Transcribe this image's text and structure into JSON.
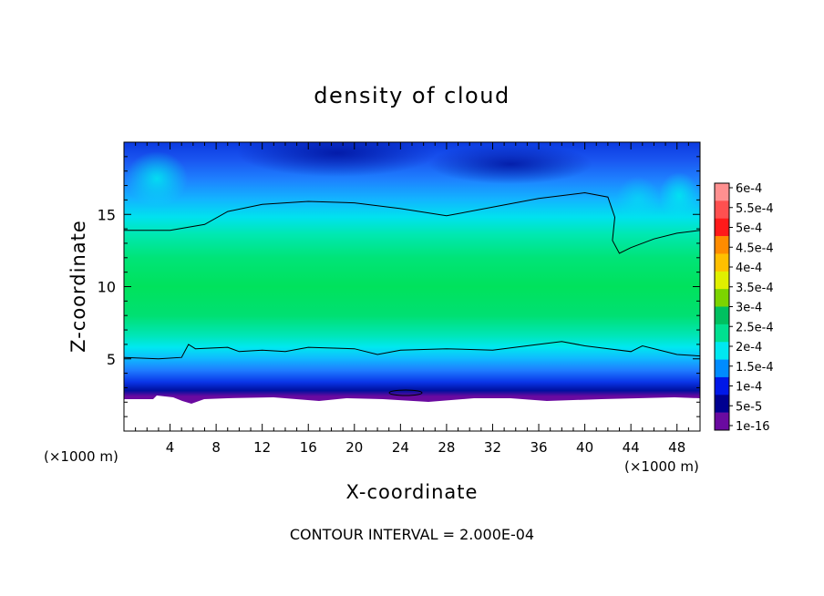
{
  "chart_data": {
    "type": "heatmap",
    "title": "density of cloud",
    "xlabel": "X-coordinate",
    "ylabel": "Z-coordinate",
    "x_unit_left": "(×1000 m)",
    "x_unit_right": "(×1000 m)",
    "xlim": [
      0,
      50
    ],
    "ylim": [
      0,
      20
    ],
    "x_ticks": [
      4,
      8,
      12,
      16,
      20,
      24,
      28,
      32,
      36,
      40,
      44,
      48
    ],
    "y_ticks": [
      5,
      10,
      15
    ],
    "footer": "CONTOUR INTERVAL = 2.000E-04",
    "colorbar": {
      "labels": [
        "6e-4",
        "5.5e-4",
        "5e-4",
        "4.5e-4",
        "4e-4",
        "3.5e-4",
        "3e-4",
        "2.5e-4",
        "2e-4",
        "1.5e-4",
        "1e-4",
        "5e-5",
        "1e-16"
      ],
      "colors": [
        "#ff9090",
        "#ff5050",
        "#ff1a1a",
        "#ff8c00",
        "#ffc000",
        "#e0f000",
        "#7cd400",
        "#00c060",
        "#00e090",
        "#00e8f0",
        "#008cff",
        "#0018e8",
        "#000090",
        "#6a0aa0"
      ]
    },
    "contour_value": "2.000E-04",
    "upper_contour": [
      [
        0,
        13.9
      ],
      [
        4,
        13.9
      ],
      [
        7,
        14.3
      ],
      [
        9,
        15.2
      ],
      [
        12,
        15.7
      ],
      [
        16,
        15.9
      ],
      [
        20,
        15.8
      ],
      [
        24,
        15.4
      ],
      [
        28,
        14.9
      ],
      [
        32,
        15.5
      ],
      [
        36,
        16.1
      ],
      [
        40,
        16.5
      ],
      [
        42,
        16.2
      ],
      [
        42.6,
        14.8
      ],
      [
        42.4,
        13.2
      ],
      [
        43.0,
        12.3
      ],
      [
        44,
        12.7
      ],
      [
        46,
        13.3
      ],
      [
        48,
        13.7
      ],
      [
        50,
        13.9
      ]
    ],
    "lower_contour": [
      [
        0,
        5.1
      ],
      [
        3,
        5.0
      ],
      [
        5,
        5.1
      ],
      [
        5.6,
        6.0
      ],
      [
        6.2,
        5.7
      ],
      [
        9,
        5.8
      ],
      [
        10,
        5.5
      ],
      [
        12,
        5.6
      ],
      [
        14,
        5.5
      ],
      [
        16,
        5.8
      ],
      [
        20,
        5.7
      ],
      [
        22,
        5.3
      ],
      [
        24,
        5.6
      ],
      [
        28,
        5.7
      ],
      [
        32,
        5.6
      ],
      [
        36,
        6.0
      ],
      [
        38,
        6.2
      ],
      [
        40,
        5.9
      ],
      [
        44,
        5.5
      ],
      [
        45,
        5.9
      ],
      [
        48,
        5.3
      ],
      [
        50,
        5.2
      ]
    ]
  }
}
